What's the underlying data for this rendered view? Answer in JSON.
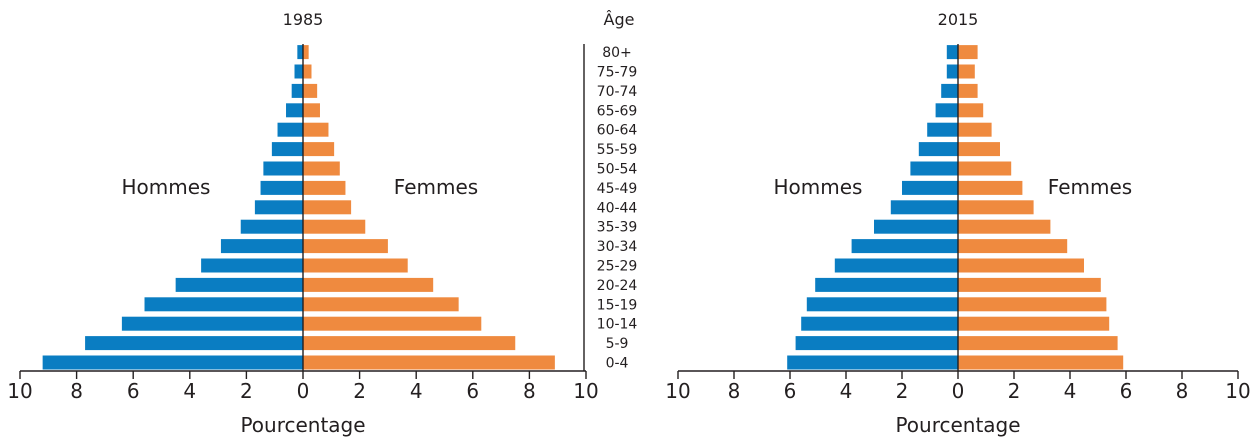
{
  "age_header": "Âge",
  "age_groups": [
    "0-4",
    "5-9",
    "10-14",
    "15-19",
    "20-24",
    "25-29",
    "30-34",
    "35-39",
    "40-44",
    "45-49",
    "50-54",
    "55-59",
    "60-64",
    "65-69",
    "70-74",
    "75-79",
    "80+"
  ],
  "colors": {
    "men": "#0a7dc2",
    "women": "#ef8a3f",
    "axis": "#231f20"
  },
  "chart_data": [
    {
      "type": "bar",
      "orientation": "horizontal",
      "title": "1985",
      "xlabel": "Pourcentage",
      "xlim": [
        -10,
        10
      ],
      "x_ticks": [
        "10",
        "8",
        "6",
        "4",
        "2",
        "0",
        "2",
        "4",
        "6",
        "8",
        "10"
      ],
      "categories": [
        "0-4",
        "5-9",
        "10-14",
        "15-19",
        "20-24",
        "25-29",
        "30-34",
        "35-39",
        "40-44",
        "45-49",
        "50-54",
        "55-59",
        "60-64",
        "65-69",
        "70-74",
        "75-79",
        "80+"
      ],
      "series": [
        {
          "name": "Hommes",
          "values": [
            9.2,
            7.7,
            6.4,
            5.6,
            4.5,
            3.6,
            2.9,
            2.2,
            1.7,
            1.5,
            1.4,
            1.1,
            0.9,
            0.6,
            0.4,
            0.3,
            0.2
          ]
        },
        {
          "name": "Femmes",
          "values": [
            8.9,
            7.5,
            6.3,
            5.5,
            4.6,
            3.7,
            3.0,
            2.2,
            1.7,
            1.5,
            1.3,
            1.1,
            0.9,
            0.6,
            0.5,
            0.3,
            0.2
          ]
        }
      ],
      "grid": false
    },
    {
      "type": "bar",
      "orientation": "horizontal",
      "title": "2015",
      "xlabel": "Pourcentage",
      "xlim": [
        -10,
        10
      ],
      "x_ticks": [
        "10",
        "8",
        "6",
        "4",
        "2",
        "0",
        "2",
        "4",
        "6",
        "8",
        "10"
      ],
      "categories": [
        "0-4",
        "5-9",
        "10-14",
        "15-19",
        "20-24",
        "25-29",
        "30-34",
        "35-39",
        "40-44",
        "45-49",
        "50-54",
        "55-59",
        "60-64",
        "65-69",
        "70-74",
        "75-79",
        "80+"
      ],
      "series": [
        {
          "name": "Hommes",
          "values": [
            6.1,
            5.8,
            5.6,
            5.4,
            5.1,
            4.4,
            3.8,
            3.0,
            2.4,
            2.0,
            1.7,
            1.4,
            1.1,
            0.8,
            0.6,
            0.4,
            0.4
          ]
        },
        {
          "name": "Femmes",
          "values": [
            5.9,
            5.7,
            5.4,
            5.3,
            5.1,
            4.5,
            3.9,
            3.3,
            2.7,
            2.3,
            1.9,
            1.5,
            1.2,
            0.9,
            0.7,
            0.6,
            0.7
          ]
        }
      ],
      "grid": false
    }
  ]
}
